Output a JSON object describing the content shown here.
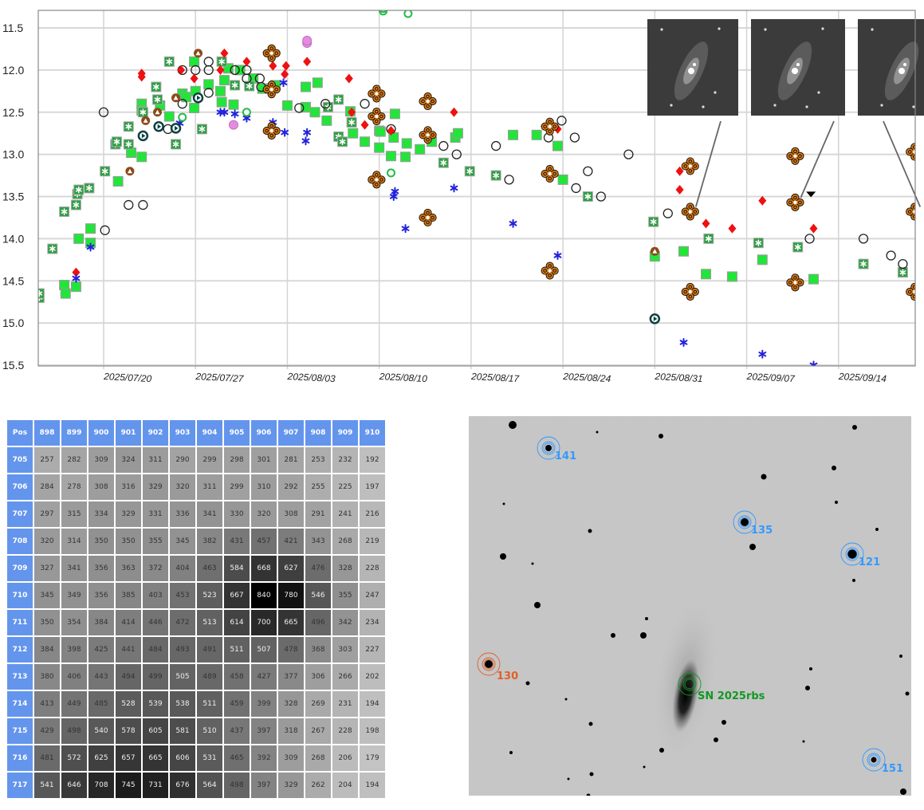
{
  "chart_data": {
    "type": "scatter",
    "title": "",
    "xlabel": "",
    "ylabel": "",
    "x_unit": "days since 2025/07/20",
    "xlim": [
      -5.0,
      61.8
    ],
    "ylim": [
      15.5,
      11.29
    ],
    "y_inverted": true,
    "grid": true,
    "y_ticks": [
      "11.5",
      "12.0",
      "12.5",
      "13.0",
      "13.5",
      "14.0",
      "14.5",
      "15.0",
      "15.5"
    ],
    "x_ticks": [
      {
        "day": 0,
        "label": "2025/07/20"
      },
      {
        "day": 7,
        "label": "2025/07/27"
      },
      {
        "day": 14,
        "label": "2025/08/03"
      },
      {
        "day": 21,
        "label": "2025/08/10"
      },
      {
        "day": 28,
        "label": "2025/08/17"
      },
      {
        "day": 35,
        "label": "2025/08/24"
      },
      {
        "day": 42,
        "label": "2025/08/31"
      },
      {
        "day": 49,
        "label": "2025/09/07"
      },
      {
        "day": 56,
        "label": "2025/09/14"
      }
    ],
    "series": [
      {
        "marker": "green-square",
        "color": "#22e53a",
        "points": [
          [
            -3.0,
            14.55
          ],
          [
            -2.9,
            14.65
          ],
          [
            -2.1,
            14.57
          ],
          [
            -1.9,
            14.0
          ],
          [
            -1.0,
            13.88
          ],
          [
            -1.0,
            14.05
          ],
          [
            1.1,
            13.32
          ],
          [
            2.1,
            12.98
          ],
          [
            2.9,
            13.03
          ],
          [
            2.9,
            12.4
          ],
          [
            2.9,
            12.48
          ],
          [
            4.3,
            12.42
          ],
          [
            5.0,
            12.55
          ],
          [
            6.0,
            12.28
          ],
          [
            6.3,
            12.32
          ],
          [
            6.9,
            11.9
          ],
          [
            7.0,
            12.25
          ],
          [
            6.9,
            12.45
          ],
          [
            8.0,
            12.17
          ],
          [
            8.9,
            12.25
          ],
          [
            9.0,
            12.38
          ],
          [
            9.2,
            12.12
          ],
          [
            9.5,
            11.98
          ],
          [
            9.9,
            12.41
          ],
          [
            10.4,
            12.0
          ],
          [
            11.4,
            12.1
          ],
          [
            12.1,
            12.22
          ],
          [
            13.1,
            12.18
          ],
          [
            14.0,
            12.42
          ],
          [
            15.4,
            12.2
          ],
          [
            15.4,
            12.44
          ],
          [
            16.1,
            12.5
          ],
          [
            16.3,
            12.15
          ],
          [
            17.0,
            12.6
          ],
          [
            18.8,
            12.49
          ],
          [
            19.0,
            12.75
          ],
          [
            19.9,
            12.85
          ],
          [
            21.0,
            12.72
          ],
          [
            21.0,
            12.92
          ],
          [
            21.1,
            12.73
          ],
          [
            21.9,
            13.02
          ],
          [
            22.2,
            12.52
          ],
          [
            22.1,
            12.8
          ],
          [
            23.0,
            13.03
          ],
          [
            23.1,
            12.87
          ],
          [
            24.1,
            12.94
          ],
          [
            25.0,
            12.85
          ],
          [
            26.8,
            12.8
          ],
          [
            27.0,
            12.75
          ],
          [
            31.2,
            12.77
          ],
          [
            33.0,
            12.77
          ],
          [
            34.6,
            12.9
          ],
          [
            35.0,
            13.3
          ],
          [
            42.0,
            14.21
          ],
          [
            44.2,
            14.15
          ],
          [
            45.9,
            14.42
          ],
          [
            47.9,
            14.45
          ],
          [
            50.2,
            14.25
          ],
          [
            54.1,
            14.48
          ]
        ]
      },
      {
        "marker": "green-star-square",
        "color": "#2e9e44",
        "points": [
          [
            -4.9,
            14.7
          ],
          [
            -4.9,
            14.65
          ],
          [
            -3.9,
            14.12
          ],
          [
            -3.0,
            13.68
          ],
          [
            -2.1,
            13.6
          ],
          [
            -2.0,
            13.47
          ],
          [
            -1.9,
            13.42
          ],
          [
            -1.1,
            13.4
          ],
          [
            0.1,
            13.2
          ],
          [
            0.9,
            12.88
          ],
          [
            1.0,
            12.85
          ],
          [
            1.9,
            12.88
          ],
          [
            1.9,
            12.67
          ],
          [
            3.0,
            12.5
          ],
          [
            4.0,
            12.2
          ],
          [
            4.1,
            12.35
          ],
          [
            5.0,
            11.9
          ],
          [
            5.5,
            12.88
          ],
          [
            7.5,
            12.7
          ],
          [
            9.0,
            11.9
          ],
          [
            10.0,
            12.18
          ],
          [
            11.1,
            12.19
          ],
          [
            17.9,
            12.35
          ],
          [
            17.1,
            12.44
          ],
          [
            17.9,
            12.79
          ],
          [
            18.2,
            12.85
          ],
          [
            18.9,
            12.62
          ],
          [
            25.9,
            13.1
          ],
          [
            27.9,
            13.2
          ],
          [
            29.9,
            13.25
          ],
          [
            36.9,
            13.5
          ],
          [
            41.9,
            13.8
          ],
          [
            46.1,
            14.0
          ],
          [
            49.9,
            14.05
          ],
          [
            52.9,
            14.1
          ],
          [
            57.9,
            14.3
          ],
          [
            60.9,
            14.4
          ]
        ]
      },
      {
        "marker": "open-circle",
        "color": "#222222",
        "points": [
          [
            0,
            12.5
          ],
          [
            0.1,
            13.9
          ],
          [
            1.9,
            13.6
          ],
          [
            3.0,
            13.6
          ],
          [
            6.0,
            12.0
          ],
          [
            4.9,
            12.7
          ],
          [
            6.0,
            12.4
          ],
          [
            7.0,
            12.0
          ],
          [
            8.0,
            11.9
          ],
          [
            8.0,
            12.0
          ],
          [
            8.0,
            12.27
          ],
          [
            10.0,
            12.0
          ],
          [
            10.9,
            12.1
          ],
          [
            10.9,
            12.0
          ],
          [
            11.9,
            12.1
          ],
          [
            12.0,
            12.2
          ],
          [
            14.9,
            12.45
          ],
          [
            16.9,
            12.4
          ],
          [
            19.9,
            12.4
          ],
          [
            21.9,
            12.7
          ],
          [
            25.9,
            12.9
          ],
          [
            26.9,
            13.0
          ],
          [
            29.9,
            12.9
          ],
          [
            30.9,
            13.3
          ],
          [
            33.9,
            12.8
          ],
          [
            34.9,
            12.6
          ],
          [
            35.9,
            12.8
          ],
          [
            36.0,
            13.4
          ],
          [
            36.9,
            13.2
          ],
          [
            37.9,
            13.5
          ],
          [
            40.0,
            13.0
          ],
          [
            43.0,
            13.7
          ],
          [
            53.8,
            14.0
          ],
          [
            57.9,
            14.0
          ],
          [
            60.0,
            14.2
          ],
          [
            60.9,
            14.3
          ]
        ]
      },
      {
        "marker": "red-diamond",
        "color": "#ee1111",
        "points": [
          [
            -2.1,
            14.4
          ],
          [
            2.9,
            12.04
          ],
          [
            2.9,
            12.08
          ],
          [
            5.9,
            12.0
          ],
          [
            6.9,
            12.1
          ],
          [
            8.9,
            12.0
          ],
          [
            9.2,
            11.8
          ],
          [
            10.9,
            11.9
          ],
          [
            12.9,
            11.95
          ],
          [
            13.8,
            12.05
          ],
          [
            13.9,
            11.95
          ],
          [
            15.5,
            11.9
          ],
          [
            18.7,
            12.1
          ],
          [
            18.9,
            12.5
          ],
          [
            19.9,
            12.65
          ],
          [
            21.9,
            12.72
          ],
          [
            26.7,
            12.5
          ],
          [
            34.6,
            12.7
          ],
          [
            43.9,
            13.2
          ],
          [
            43.9,
            13.42
          ],
          [
            45.9,
            13.82
          ],
          [
            47.9,
            13.88
          ],
          [
            50.2,
            13.55
          ],
          [
            54.1,
            13.88
          ]
        ]
      },
      {
        "marker": "blue-star",
        "color": "#2222dd",
        "points": [
          [
            -2.1,
            14.47
          ],
          [
            -1.0,
            14.1
          ],
          [
            5.8,
            12.63
          ],
          [
            8.9,
            12.5
          ],
          [
            9.2,
            12.5
          ],
          [
            10.0,
            12.52
          ],
          [
            10.9,
            12.57
          ],
          [
            12.9,
            12.62
          ],
          [
            13.8,
            12.74
          ],
          [
            13.7,
            12.15
          ],
          [
            15.5,
            12.74
          ],
          [
            15.4,
            12.84
          ],
          [
            22.2,
            13.44
          ],
          [
            22.1,
            13.5
          ],
          [
            23.0,
            13.88
          ],
          [
            26.7,
            13.4
          ],
          [
            31.2,
            13.82
          ],
          [
            34.6,
            14.2
          ],
          [
            44.2,
            15.23
          ],
          [
            50.2,
            15.37
          ],
          [
            54.1,
            15.5
          ]
        ]
      },
      {
        "marker": "brown-quatrefoil",
        "color": "#e07a10",
        "points": [
          [
            12.8,
            11.8
          ],
          [
            12.8,
            12.23
          ],
          [
            12.8,
            12.72
          ],
          [
            20.8,
            12.28
          ],
          [
            20.8,
            12.55
          ],
          [
            20.8,
            13.3
          ],
          [
            24.7,
            12.37
          ],
          [
            24.7,
            12.77
          ],
          [
            24.7,
            13.75
          ],
          [
            34.0,
            12.67
          ],
          [
            34.0,
            13.23
          ],
          [
            34.0,
            14.38
          ],
          [
            44.7,
            13.14
          ],
          [
            44.7,
            13.68
          ],
          [
            44.7,
            14.63
          ],
          [
            52.7,
            13.02
          ],
          [
            52.7,
            13.57
          ],
          [
            52.7,
            14.52
          ],
          [
            61.8,
            12.97
          ],
          [
            61.8,
            13.68
          ],
          [
            61.8,
            14.63
          ]
        ]
      },
      {
        "marker": "brown-triangle-circle",
        "color": "#8b4a1a",
        "points": [
          [
            2.0,
            13.2
          ],
          [
            3.2,
            12.6
          ],
          [
            4.1,
            12.5
          ],
          [
            5.5,
            12.33
          ],
          [
            7.2,
            11.8
          ],
          [
            42.0,
            14.15
          ]
        ]
      },
      {
        "marker": "teal-play-circle",
        "color": "#0f4040",
        "points": [
          [
            3.0,
            12.78
          ],
          [
            4.2,
            12.67
          ],
          [
            5.5,
            12.69
          ],
          [
            7.2,
            12.33
          ],
          [
            42.0,
            14.95
          ]
        ]
      },
      {
        "marker": "green-open-circle",
        "color": "#22bb44",
        "points": [
          [
            6.0,
            12.56
          ],
          [
            10.9,
            12.5
          ],
          [
            21.9,
            13.22
          ],
          [
            21.3,
            11.3
          ],
          [
            21.3,
            11.27
          ],
          [
            23.2,
            11.33
          ]
        ]
      },
      {
        "marker": "pink-hexagon",
        "color": "#e58ce0",
        "points": [
          [
            15.5,
            11.68
          ],
          [
            15.5,
            11.65
          ],
          [
            9.9,
            12.65
          ]
        ]
      },
      {
        "marker": "black-down-triangle",
        "color": "#000000",
        "points": [
          [
            53.9,
            13.48
          ]
        ]
      }
    ],
    "insets": [
      {
        "links_to": [
          44.7,
          13.68
        ]
      },
      {
        "links_to": [
          52.7,
          13.57
        ]
      },
      {
        "links_to": [
          61.8,
          13.68
        ]
      }
    ]
  },
  "pixel_table": {
    "corner": "Pos",
    "columns": [
      "898",
      "899",
      "900",
      "901",
      "902",
      "903",
      "904",
      "905",
      "906",
      "907",
      "908",
      "909",
      "910"
    ],
    "rows": [
      {
        "pos": "705",
        "values": [
          257,
          282,
          309,
          324,
          311,
          290,
          299,
          298,
          301,
          281,
          253,
          232,
          192
        ]
      },
      {
        "pos": "706",
        "values": [
          284,
          278,
          308,
          316,
          329,
          320,
          311,
          299,
          310,
          292,
          255,
          225,
          197
        ]
      },
      {
        "pos": "707",
        "values": [
          297,
          315,
          334,
          329,
          331,
          336,
          341,
          330,
          320,
          308,
          291,
          241,
          216
        ]
      },
      {
        "pos": "708",
        "values": [
          320,
          314,
          350,
          350,
          355,
          345,
          382,
          431,
          457,
          421,
          343,
          268,
          219
        ]
      },
      {
        "pos": "709",
        "values": [
          327,
          341,
          356,
          363,
          372,
          404,
          463,
          584,
          668,
          627,
          476,
          328,
          228
        ]
      },
      {
        "pos": "710",
        "values": [
          345,
          349,
          356,
          385,
          403,
          453,
          523,
          667,
          840,
          780,
          546,
          355,
          247
        ]
      },
      {
        "pos": "711",
        "values": [
          350,
          354,
          384,
          414,
          446,
          472,
          513,
          614,
          700,
          665,
          496,
          342,
          234
        ]
      },
      {
        "pos": "712",
        "values": [
          384,
          398,
          425,
          441,
          484,
          493,
          491,
          511,
          507,
          478,
          368,
          303,
          227
        ]
      },
      {
        "pos": "713",
        "values": [
          380,
          406,
          443,
          494,
          499,
          505,
          489,
          458,
          427,
          377,
          306,
          266,
          202
        ]
      },
      {
        "pos": "714",
        "values": [
          413,
          449,
          485,
          528,
          539,
          538,
          511,
          459,
          399,
          328,
          269,
          231,
          194
        ]
      },
      {
        "pos": "715",
        "values": [
          429,
          498,
          540,
          578,
          605,
          581,
          510,
          437,
          397,
          318,
          267,
          228,
          198
        ]
      },
      {
        "pos": "716",
        "values": [
          481,
          572,
          625,
          657,
          665,
          606,
          531,
          465,
          392,
          309,
          268,
          206,
          179
        ]
      },
      {
        "pos": "717",
        "values": [
          541,
          646,
          708,
          745,
          731,
          676,
          564,
          498,
          397,
          329,
          262,
          204,
          194
        ]
      }
    ]
  },
  "field_image": {
    "labels": {
      "s141": "141",
      "s135": "135",
      "s121": "121",
      "s130": "130",
      "s151": "151",
      "sn": "SN 2025rbs"
    },
    "colors": {
      "comparison": "#3399ff",
      "check": "#e0602a",
      "target": "#119922"
    }
  }
}
